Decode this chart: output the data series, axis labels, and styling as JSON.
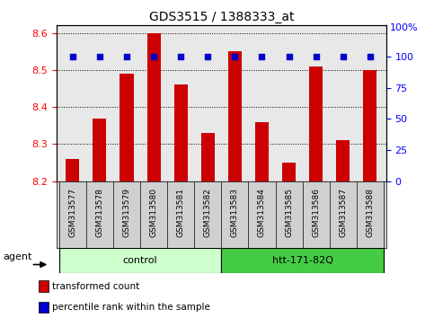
{
  "title": "GDS3515 / 1388333_at",
  "samples": [
    "GSM313577",
    "GSM313578",
    "GSM313579",
    "GSM313580",
    "GSM313581",
    "GSM313582",
    "GSM313583",
    "GSM313584",
    "GSM313585",
    "GSM313586",
    "GSM313587",
    "GSM313588"
  ],
  "bar_values": [
    8.26,
    8.37,
    8.49,
    8.6,
    8.46,
    8.33,
    8.55,
    8.36,
    8.25,
    8.51,
    8.31,
    8.5
  ],
  "percentile_values": [
    100,
    100,
    100,
    100,
    100,
    100,
    100,
    100,
    100,
    100,
    100,
    100
  ],
  "bar_color": "#cc0000",
  "percentile_color": "#0000cc",
  "ylim_left": [
    8.2,
    8.62
  ],
  "yticks_left": [
    8.2,
    8.3,
    8.4,
    8.5,
    8.6
  ],
  "yticks_right": [
    0,
    25,
    50,
    75,
    100
  ],
  "ylim_right": [
    0,
    125
  ],
  "groups": [
    {
      "label": "control",
      "start": 0,
      "end": 5,
      "color": "#ccffcc"
    },
    {
      "label": "htt-171-82Q",
      "start": 6,
      "end": 11,
      "color": "#44cc44"
    }
  ],
  "agent_label": "agent",
  "legend_items": [
    {
      "color": "#cc0000",
      "label": "transformed count"
    },
    {
      "color": "#0000cc",
      "label": "percentile rank within the sample"
    }
  ],
  "plot_bg_color": "#e8e8e8",
  "right_axis_top_label": "100%"
}
